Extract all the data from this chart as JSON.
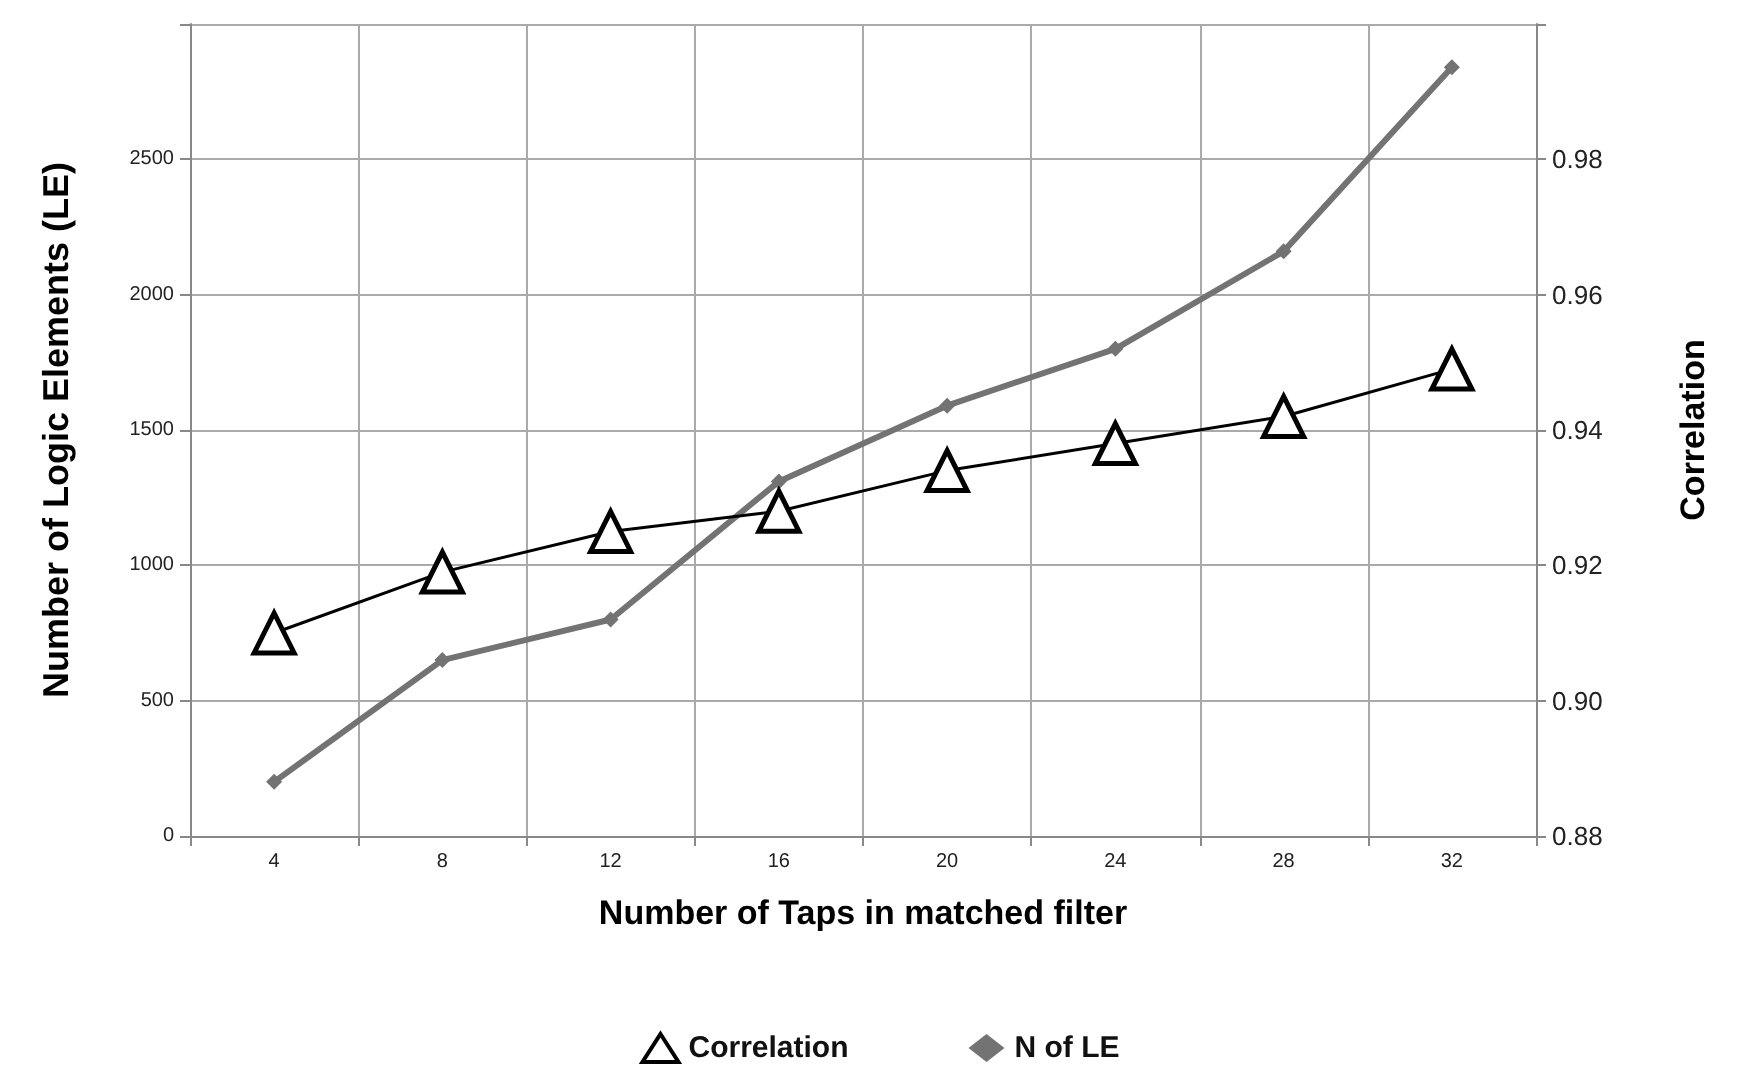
{
  "chart_data": {
    "type": "line",
    "xlabel": "Number of Taps in matched filter",
    "ylabel": "Number of Logic Elements (LE)",
    "y2label": "Correlation",
    "categories": [
      "4",
      "8",
      "12",
      "16",
      "20",
      "24",
      "28",
      "32"
    ],
    "series": [
      {
        "name": "Correlation",
        "color": "#000000",
        "axis": "y2",
        "marker": "triangle",
        "values": [
          0.91,
          0.919,
          0.925,
          0.928,
          0.934,
          0.938,
          0.942,
          0.949
        ]
      },
      {
        "name": "N of LE",
        "color": "#737373",
        "marker": "diamond",
        "values": [
          200,
          650,
          800,
          1310,
          1590,
          1800,
          2160,
          2840
        ]
      }
    ],
    "ylim": [
      0,
      3000
    ],
    "yticks": [
      0,
      500,
      1000,
      1500,
      2000,
      2500,
      {
        "value": 3000,
        "label": null
      }
    ],
    "y2lim": [
      0.88,
      1.0
    ],
    "y2ticks": [
      0.88,
      {
        "value": 0.9,
        "label": "0.90"
      },
      0.92,
      0.94,
      0.96,
      0.98,
      {
        "value": 1.0,
        "label": null
      }
    ],
    "grid": true,
    "legend": "bottom",
    "line_style": "solid"
  }
}
